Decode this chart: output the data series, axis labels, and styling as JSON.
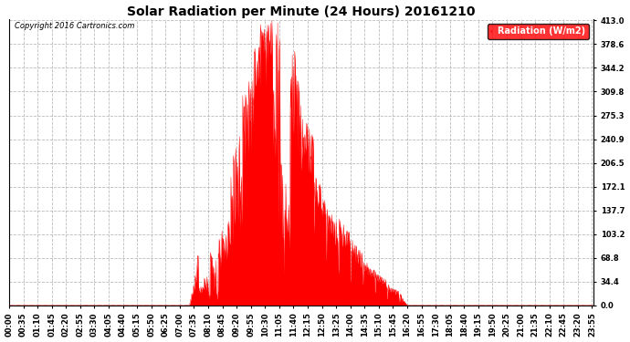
{
  "title": "Solar Radiation per Minute (24 Hours) 20161210",
  "copyright": "Copyright 2016 Cartronics.com",
  "ylabel": "Radiation (W/m2)",
  "yticks": [
    0.0,
    34.4,
    68.8,
    103.2,
    137.7,
    172.1,
    206.5,
    240.9,
    275.3,
    309.8,
    344.2,
    378.6,
    413.0
  ],
  "ymax": 413.0,
  "fill_color": "#FF0000",
  "line_color": "#FF0000",
  "bg_color": "#FFFFFF",
  "grid_color": "#AAAAAA",
  "dashed_zero_color": "#FF0000",
  "legend_bg": "#FF0000",
  "legend_text_color": "#FFFFFF",
  "total_minutes": 1440,
  "sunrise_minute": 443,
  "sunset_minute": 980,
  "xtick_step": 35,
  "title_fontsize": 10,
  "tick_fontsize": 6,
  "copyright_fontsize": 6
}
